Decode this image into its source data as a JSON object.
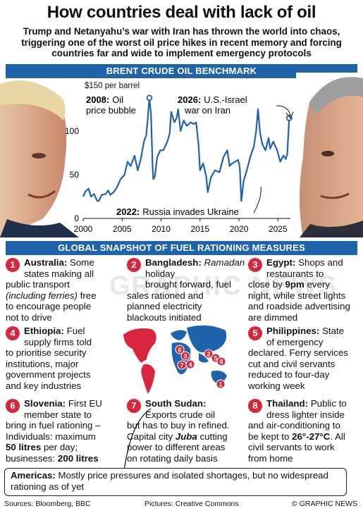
{
  "header": {
    "title": "How countries deal with lack of oil",
    "subtitle": "Trump and Netanyahu’s war with Iran has thrown the world into chaos, triggering one of the worst oil price hikes in recent memory and forcing countries far and wide to implement emergency protocols"
  },
  "chart_section": {
    "band": "BRENT CRUDE OIL BENCHMARK",
    "unit_label": "$150 per barrel",
    "annotation_2008_year": "2008:",
    "annotation_2008_text_1": "Oil",
    "annotation_2008_text_2": "price bubble",
    "annotation_2026_year": "2026:",
    "annotation_2026_text_1": "U.S.-Israel",
    "annotation_2026_text_2": "war on Iran",
    "annotation_2022_year": "2022:",
    "annotation_2022_text": "Russia invades Ukraine"
  },
  "chart_data": {
    "type": "line",
    "title": "BRENT CRUDE OIL BENCHMARK",
    "ylabel": "$150 per barrel",
    "ylim": [
      0,
      150
    ],
    "yticks": [
      "0",
      "50",
      "100"
    ],
    "xticks": [
      "2000",
      "2005",
      "2010",
      "2015",
      "2020",
      "2025"
    ],
    "xlim": [
      2000,
      2026.6
    ],
    "series": [
      {
        "name": "Brent crude",
        "x": [
          2000,
          2000.3,
          2000.7,
          2001,
          2001.4,
          2001.8,
          2002,
          2002.4,
          2002.9,
          2003.2,
          2003.5,
          2003.9,
          2004.3,
          2004.8,
          2005.3,
          2005.7,
          2006.1,
          2006.6,
          2007,
          2007.4,
          2007.8,
          2008.1,
          2008.3,
          2008.5,
          2008.7,
          2008.9,
          2009,
          2009.2,
          2009.5,
          2009.9,
          2010.3,
          2010.8,
          2011.1,
          2011.3,
          2011.7,
          2012,
          2012.2,
          2012.5,
          2012.9,
          2013.3,
          2013.8,
          2014.2,
          2014.5,
          2014.8,
          2015,
          2015.4,
          2015.8,
          2016,
          2016.4,
          2016.9,
          2017.5,
          2018,
          2018.5,
          2018.8,
          2019,
          2019.5,
          2019.9,
          2020.1,
          2020.3,
          2020.6,
          2021,
          2021.5,
          2021.9,
          2022.2,
          2022.45,
          2022.7,
          2023,
          2023.4,
          2023.8,
          2024,
          2024.4,
          2024.9,
          2025.3,
          2025.7,
          2026.0,
          2026.2,
          2026.45
        ],
        "y": [
          25,
          31,
          34,
          25,
          28,
          20,
          20,
          27,
          28,
          32,
          27,
          30,
          35,
          45,
          50,
          65,
          60,
          72,
          55,
          68,
          88,
          95,
          115,
          138,
          120,
          62,
          45,
          48,
          70,
          78,
          78,
          88,
          97,
          122,
          110,
          115,
          125,
          100,
          112,
          106,
          110,
          108,
          110,
          85,
          55,
          63,
          48,
          30,
          47,
          55,
          53,
          70,
          78,
          60,
          62,
          65,
          67,
          58,
          20,
          43,
          55,
          72,
          82,
          100,
          125,
          98,
          85,
          78,
          92,
          80,
          88,
          78,
          65,
          72,
          68,
          74,
          115
        ]
      }
    ],
    "grid": false
  },
  "rationing_section": {
    "band": "GLOBAL SNAPSHOT OF FUEL RATIONING MEASURES",
    "watermark": "GRAPHIC NEWS"
  },
  "cards": [
    {
      "num": "1",
      "country": "Australia:",
      "lines": [
        "Some",
        "states making all",
        "public transport",
        "(including ferries) free",
        "to encourage people",
        "not to drive"
      ]
    },
    {
      "num": "2",
      "country": "Bangladesh:",
      "lines": [
        "Ramadan holiday",
        "brought forward, fuel",
        "sales rationed and",
        "planned electricity",
        "blackouts initiated"
      ]
    },
    {
      "num": "3",
      "country": "Egypt:",
      "lines": [
        "Shops and",
        "restaurants to",
        "close by 9pm every",
        "night, while street lights",
        "and roadside advertising",
        "are dimmed"
      ]
    },
    {
      "num": "4",
      "country": "Ethiopia:",
      "lines": [
        "Fuel",
        "supply firms told",
        "to prioritise security",
        "institutions, major",
        "government projects",
        "and key industries"
      ]
    },
    {
      "num": "5",
      "country": "Philippines:",
      "lines": [
        "State",
        "of emergency",
        "declared. Ferry services",
        "cut and civil servants",
        "reduced to four-day",
        "working week"
      ]
    },
    {
      "num": "6",
      "country": "Slovenia:",
      "lines": [
        "First EU",
        "member state to",
        "bring in fuel rationing –",
        "Individuals: maximum",
        "50 litres per day;",
        "businesses: 200 litres"
      ]
    },
    {
      "num": "7",
      "country": "South Sudan:",
      "lines": [
        "",
        "Exports crude oil",
        "but has to buy in refined.",
        "Capital city Juba cutting",
        "power to different areas",
        "on rotating daily basis"
      ]
    },
    {
      "num": "8",
      "country": "Thailand:",
      "lines": [
        "Public to",
        "dress lighter inside",
        "and air-conditioning to",
        "be kept to 26°-27°C. All",
        "civil servants to work",
        "from home"
      ]
    }
  ],
  "americas": {
    "label": "Americas:",
    "text": "Mostly price pressures and isolated shortages, but no widespread rationing as of yet"
  },
  "footer": {
    "sources": "Sources: Bloomberg, BBC",
    "pictures": "Pictures: Creative Commons",
    "credit": "© GRAPHIC NEWS"
  },
  "colors": {
    "band": "#1f63ad",
    "line": "#1f63ad",
    "marker": "#d7263d",
    "map_red": "#d7263d",
    "map_blue": "#1f63ad"
  }
}
